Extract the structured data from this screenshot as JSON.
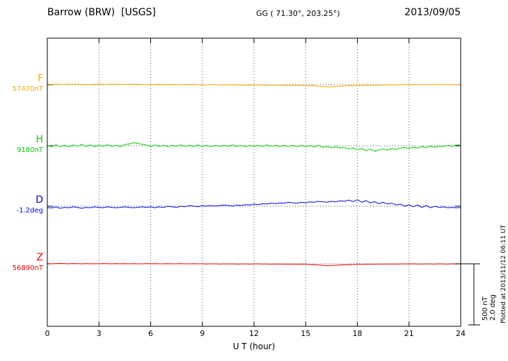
{
  "header": {
    "station": "Barrow (BRW)  [USGS]",
    "coords": "GG ( 71.30°, 203.25°)",
    "date": "2013/09/05"
  },
  "plotted_note": "Plotted at 2013/11/12 06:11 UT",
  "chart_data": {
    "type": "line",
    "title": "Barrow (BRW) [USGS] magnetogram 2013/09/05",
    "x": {
      "label": "U T (hour)",
      "min": 0,
      "max": 24,
      "ticks": [
        0,
        3,
        6,
        9,
        12,
        15,
        18,
        21,
        24
      ]
    },
    "sample_interval_hours": 0.25,
    "grid": "dotted vertical at 3h intervals, dotted horizontal at each channel baseline",
    "legend_position": "left channel labels",
    "scale_reference": {
      "nT": 500,
      "deg": 2.0,
      "nt_label": "500 nT",
      "deg_label": "2.0 deg"
    },
    "series": [
      {
        "name": "F",
        "baseline_value": "57470nT",
        "unit": "nT",
        "color": "#FFA500",
        "offsets": [
          4,
          2,
          5,
          3,
          1,
          4,
          2,
          5,
          3,
          2,
          1,
          3,
          4,
          2,
          3,
          5,
          4,
          2,
          1,
          3,
          4,
          2,
          1,
          0,
          2,
          3,
          4,
          2,
          1,
          3,
          2,
          0,
          1,
          3,
          1,
          0,
          -2,
          0,
          1,
          0,
          -1,
          -3,
          -1,
          0,
          -2,
          -3,
          -4,
          -2,
          -1,
          -3,
          -4,
          -5,
          -4,
          -3,
          -4,
          -5,
          -6,
          -5,
          -4,
          -5,
          -6,
          -8,
          -10,
          -13,
          -16,
          -18,
          -17,
          -14,
          -12,
          -10,
          -9,
          -8,
          -7,
          -6,
          -5,
          -5,
          -4,
          -4,
          -3,
          -3,
          -2,
          -1,
          0,
          0,
          1,
          1,
          0,
          1,
          0,
          1,
          0,
          1,
          1,
          0,
          1,
          0,
          1
        ]
      },
      {
        "name": "H",
        "baseline_value": "9180nT",
        "unit": "nT",
        "color": "#00CC00",
        "offsets": [
          4,
          -6,
          8,
          -7,
          5,
          -9,
          7,
          -4,
          10,
          -5,
          7,
          -7,
          5,
          -4,
          9,
          -5,
          4,
          -7,
          10,
          15,
          25,
          20,
          12,
          6,
          -4,
          7,
          -5,
          4,
          -7,
          5,
          -4,
          7,
          -5,
          4,
          -6,
          7,
          -4,
          5,
          -7,
          4,
          -5,
          5,
          -4,
          7,
          -5,
          4,
          -7,
          5,
          -4,
          4,
          -5,
          7,
          -5,
          4,
          -7,
          5,
          -5,
          4,
          -7,
          5,
          -9,
          4,
          -11,
          5,
          -13,
          -7,
          -15,
          -9,
          -18,
          -14,
          -25,
          -18,
          -32,
          -22,
          -40,
          -28,
          -45,
          -33,
          -26,
          -36,
          -22,
          -30,
          -18,
          -14,
          -22,
          -10,
          -18,
          -7,
          -14,
          -5,
          -11,
          -4,
          -7,
          4,
          -5,
          7,
          4
        ]
      },
      {
        "name": "D",
        "baseline_value": "-1.2deg",
        "unit": "deg",
        "color": "#0000EE",
        "offsets": [
          -0.04,
          -0.06,
          -0.02,
          -0.07,
          -0.04,
          -0.05,
          -0.02,
          -0.04,
          -0.07,
          -0.04,
          -0.05,
          -0.02,
          -0.04,
          -0.05,
          -0.02,
          -0.04,
          -0.05,
          -0.04,
          -0.02,
          -0.04,
          -0.05,
          -0.04,
          -0.02,
          -0.04,
          -0.02,
          -0.05,
          -0.02,
          -0.04,
          0,
          -0.02,
          -0.04,
          0,
          -0.02,
          0.02,
          0,
          -0.02,
          0.02,
          0,
          0.02,
          0,
          0.02,
          0.04,
          0.02,
          0,
          0.04,
          0.02,
          0.05,
          0.04,
          0.07,
          0.05,
          0.08,
          0.07,
          0.1,
          0.08,
          0.11,
          0.1,
          0.13,
          0.11,
          0.1,
          0.13,
          0.11,
          0.14,
          0.13,
          0.16,
          0.14,
          0.13,
          0.16,
          0.14,
          0.18,
          0.16,
          0.2,
          0.15,
          0.21,
          0.13,
          0.18,
          0.11,
          0.15,
          0.08,
          0.13,
          0.07,
          0.1,
          0.04,
          0.07,
          0,
          0.05,
          -0.02,
          0.04,
          -0.04,
          0.02,
          -0.05,
          0,
          -0.04,
          -0.02,
          -0.05,
          -0.04,
          -0.05,
          -0.04
        ]
      },
      {
        "name": "Z",
        "baseline_value": "56890nT",
        "unit": "nT",
        "color": "#EE0000",
        "offsets": [
          2,
          0,
          2,
          3,
          1,
          0,
          2,
          1,
          0,
          2,
          0,
          1,
          0,
          2,
          1,
          0,
          2,
          0,
          1,
          0,
          1,
          0,
          0,
          2,
          0,
          1,
          0,
          0,
          1,
          0,
          0,
          1,
          0,
          0,
          1,
          0,
          0,
          -1,
          0,
          0,
          -2,
          0,
          -1,
          0,
          -2,
          -1,
          0,
          -2,
          -1,
          0,
          -2,
          -1,
          -3,
          -2,
          -1,
          -3,
          -2,
          -3,
          -3,
          -2,
          -4,
          -6,
          -8,
          -10,
          -13,
          -15,
          -14,
          -12,
          -10,
          -8,
          -7,
          -6,
          -5,
          -4,
          -4,
          -3,
          -3,
          -2,
          -2,
          -2,
          -1,
          -2,
          -1,
          0,
          -2,
          0,
          -1,
          -2,
          0,
          -1,
          -2,
          0,
          -1,
          -2,
          0,
          -1,
          0
        ]
      }
    ]
  }
}
